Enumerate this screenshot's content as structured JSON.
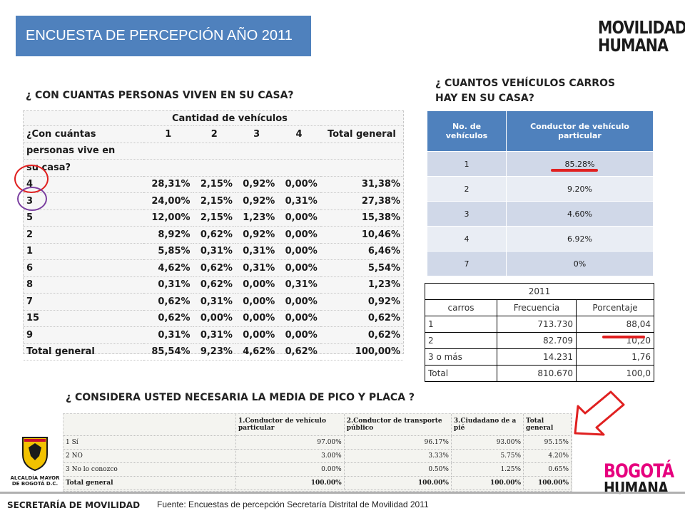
{
  "title": "ENCUESTA DE PERCEPCIÓN  AÑO 2011",
  "logo_top": {
    "line1": "MOVILIDAD",
    "line2": "HUMANA"
  },
  "logo_bottom": {
    "line1": "BOGOTÁ",
    "line2": "HUMANA"
  },
  "alcaldia": {
    "line1": "ALCALDÍA MAYOR",
    "line2": "DE BOGOTÁ D.C."
  },
  "q1": "¿ CON CUANTAS PERSONAS VIVEN EN SU CASA?",
  "q2_line1": "¿ CUANTOS VEHÍCULOS CARROS",
  "q2_line2": "HAY EN SU CASA?",
  "q3": "¿ CONSIDERA USTED NECESARIA LA MEDIA DE PICO Y PLACA ?",
  "table_personas": {
    "group_header": "Cantidad de vehículos",
    "row_header": [
      "¿Con cuántas",
      "personas vive en",
      "su casa?"
    ],
    "columns": [
      "1",
      "2",
      "3",
      "4",
      "Total general"
    ],
    "rows": [
      {
        "label": "4",
        "values": [
          "28,31%",
          "2,15%",
          "0,92%",
          "0,00%",
          "31,38%"
        ]
      },
      {
        "label": "3",
        "values": [
          "24,00%",
          "2,15%",
          "0,92%",
          "0,31%",
          "27,38%"
        ]
      },
      {
        "label": "5",
        "values": [
          "12,00%",
          "2,15%",
          "1,23%",
          "0,00%",
          "15,38%"
        ]
      },
      {
        "label": "2",
        "values": [
          "8,92%",
          "0,62%",
          "0,92%",
          "0,00%",
          "10,46%"
        ]
      },
      {
        "label": "1",
        "values": [
          "5,85%",
          "0,31%",
          "0,31%",
          "0,00%",
          "6,46%"
        ]
      },
      {
        "label": "6",
        "values": [
          "4,62%",
          "0,62%",
          "0,31%",
          "0,00%",
          "5,54%"
        ]
      },
      {
        "label": "8",
        "values": [
          "0,31%",
          "0,62%",
          "0,00%",
          "0,31%",
          "1,23%"
        ]
      },
      {
        "label": "7",
        "values": [
          "0,62%",
          "0,31%",
          "0,00%",
          "0,00%",
          "0,92%"
        ]
      },
      {
        "label": "15",
        "values": [
          "0,62%",
          "0,00%",
          "0,00%",
          "0,00%",
          "0,62%"
        ]
      },
      {
        "label": "9",
        "values": [
          "0,31%",
          "0,31%",
          "0,00%",
          "0,00%",
          "0,62%"
        ]
      }
    ],
    "total": {
      "label": "Total general",
      "values": [
        "85,54%",
        "9,23%",
        "4,62%",
        "0,62%",
        "100,00%"
      ]
    }
  },
  "table_vehiculos": {
    "headers": [
      "No.  de vehículos",
      "Conductor de vehículo particular"
    ],
    "rows": [
      {
        "n": "1",
        "v": "85.28%"
      },
      {
        "n": "2",
        "v": "9.20%"
      },
      {
        "n": "3",
        "v": "4.60%"
      },
      {
        "n": "4",
        "v": "6.92%"
      },
      {
        "n": "7",
        "v": "0%"
      }
    ]
  },
  "table_2011": {
    "year": "2011",
    "headers": [
      "carros",
      "Frecuencia",
      "Porcentaje"
    ],
    "rows": [
      [
        "1",
        "713.730",
        "88,04"
      ],
      [
        "2",
        "82.709",
        "10,20"
      ],
      [
        "3 o más",
        "14.231",
        "1,76"
      ],
      [
        "Total",
        "810.670",
        "100,0"
      ]
    ]
  },
  "table_pico_placa": {
    "headers": [
      "1.Conductor de vehículo particular",
      "2.Conductor de transporte público",
      "3.Ciudadano de a pié",
      "Total general"
    ],
    "rows": [
      {
        "label": "1 Sí",
        "values": [
          "97.00%",
          "96.17%",
          "93.00%",
          "95.15%"
        ]
      },
      {
        "label": "2 NO",
        "values": [
          "3.00%",
          "3.33%",
          "5.75%",
          "4.20%"
        ]
      },
      {
        "label": "3 No lo conozco",
        "values": [
          "0.00%",
          "0.50%",
          "1.25%",
          "0.65%"
        ]
      }
    ],
    "total": {
      "label": "Total general",
      "values": [
        "100.00%",
        "100.00%",
        "100.00%",
        "100.00%"
      ]
    }
  },
  "footer": {
    "secretaria": "SECRETARÍA DE MOVILIDAD",
    "fuente": "Fuente:   Encuestas de percepción Secretaría Distrital de Movilidad 2011"
  },
  "colors": {
    "title_bg": "#4f81bd",
    "circle_red": "#e02020",
    "circle_purple": "#7b3fa0",
    "logo_accent": "#e6007e"
  }
}
